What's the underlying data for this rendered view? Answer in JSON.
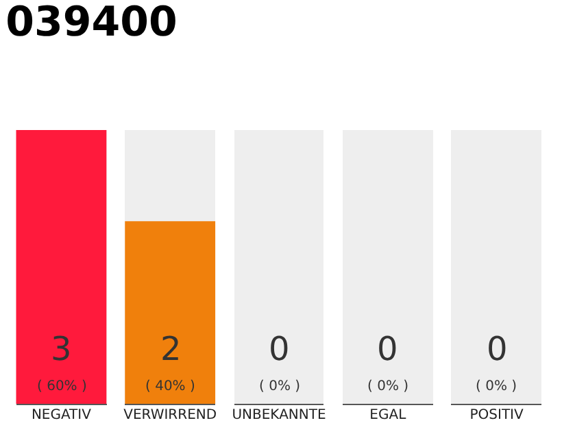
{
  "chart_data": {
    "type": "bar",
    "title": "039400",
    "categories": [
      "NEGATIV",
      "VERWIRREND",
      "UNBEKANNTE",
      "EGAL",
      "POSITIV"
    ],
    "values": [
      3,
      2,
      0,
      0,
      0
    ],
    "colors": [
      "#ff1a3c",
      "#f0800c",
      "#eeeeee",
      "#eeeeee",
      "#eeeeee"
    ],
    "value_labels": [
      "3\n( 60% )",
      "2\n( 40% )",
      "0\n( 0% )",
      "0\n( 0% )",
      "0\n( 0% )"
    ]
  }
}
